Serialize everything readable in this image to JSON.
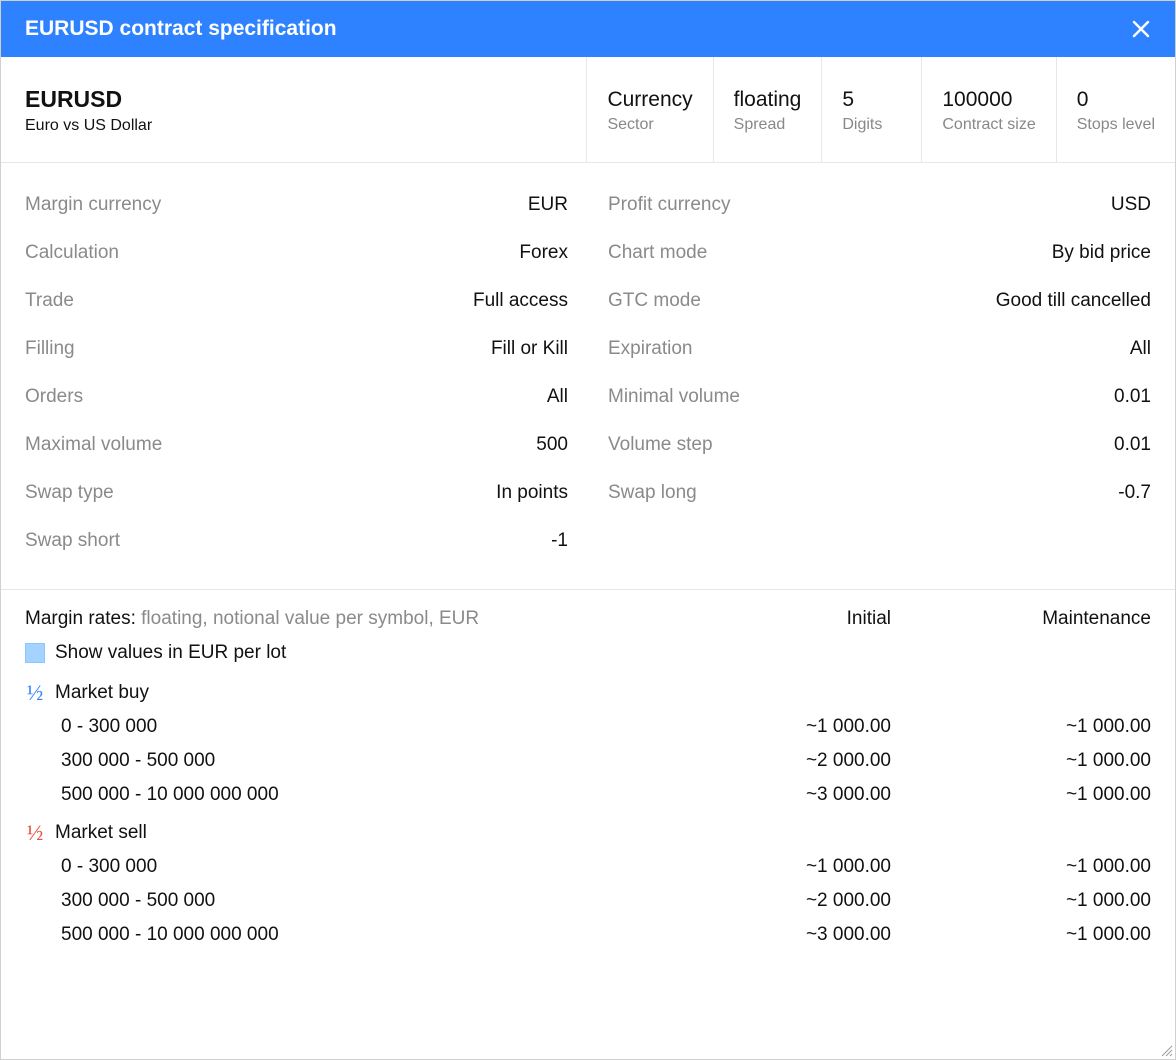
{
  "colors": {
    "accent": "#2e82ff",
    "titlebar_text": "#ffffff",
    "border": "#e7e7e7",
    "label_muted": "#8a8a8a",
    "text": "#111111",
    "checkbox_fill": "#a5d3ff",
    "half_blue": "#2e82ff",
    "half_red": "#e74c3c"
  },
  "title": "EURUSD contract specification",
  "header": {
    "symbol": "EURUSD",
    "description": "Euro vs US Dollar",
    "cells": [
      {
        "value": "Currency",
        "label": "Sector"
      },
      {
        "value": "floating",
        "label": "Spread"
      },
      {
        "value": "5",
        "label": "Digits"
      },
      {
        "value": "100000",
        "label": "Contract size"
      },
      {
        "value": "0",
        "label": "Stops level"
      }
    ]
  },
  "details": {
    "left": [
      {
        "label": "Margin currency",
        "value": "EUR"
      },
      {
        "label": "Calculation",
        "value": "Forex"
      },
      {
        "label": "Trade",
        "value": "Full access"
      },
      {
        "label": "Filling",
        "value": "Fill or Kill"
      },
      {
        "label": "Orders",
        "value": "All"
      },
      {
        "label": "Maximal volume",
        "value": "500"
      },
      {
        "label": "Swap type",
        "value": "In points"
      },
      {
        "label": "Swap short",
        "value": "-1"
      }
    ],
    "right": [
      {
        "label": "Profit currency",
        "value": "USD"
      },
      {
        "label": "Chart mode",
        "value": "By bid price"
      },
      {
        "label": "GTC mode",
        "value": "Good till cancelled"
      },
      {
        "label": "Expiration",
        "value": "All"
      },
      {
        "label": "Minimal volume",
        "value": "0.01"
      },
      {
        "label": "Volume step",
        "value": "0.01"
      },
      {
        "label": "Swap long",
        "value": "-0.7"
      }
    ]
  },
  "margin": {
    "label": "Margin rates:",
    "sub": "floating, notional value per symbol, EUR",
    "col_initial": "Initial",
    "col_maintenance": "Maintenance",
    "show_values_label": "Show values in EUR per lot",
    "show_values_checked": true,
    "sections": [
      {
        "title": "Market buy",
        "icon_color": "blue",
        "tiers": [
          {
            "range": "0 - 300 000",
            "initial": "~1 000.00",
            "maintenance": "~1 000.00"
          },
          {
            "range": "300 000 - 500 000",
            "initial": "~2 000.00",
            "maintenance": "~1 000.00"
          },
          {
            "range": "500 000 - 10 000 000 000",
            "initial": "~3 000.00",
            "maintenance": "~1 000.00"
          }
        ]
      },
      {
        "title": "Market sell",
        "icon_color": "red",
        "tiers": [
          {
            "range": "0 - 300 000",
            "initial": "~1 000.00",
            "maintenance": "~1 000.00"
          },
          {
            "range": "300 000 - 500 000",
            "initial": "~2 000.00",
            "maintenance": "~1 000.00"
          },
          {
            "range": "500 000 - 10 000 000 000",
            "initial": "~3 000.00",
            "maintenance": "~1 000.00"
          }
        ]
      }
    ]
  }
}
